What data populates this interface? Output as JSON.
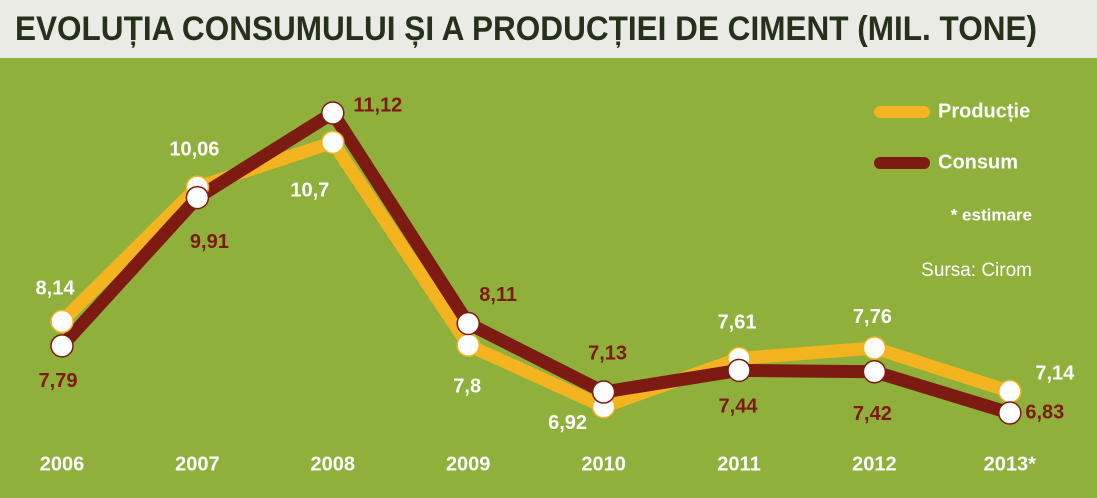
{
  "chart_data": {
    "type": "line",
    "title": "EVOLUȚIA CONSUMULUI ȘI A PRODUCȚIEI DE CIMENT (MIL. TONE)",
    "categories": [
      "2006",
      "2007",
      "2008",
      "2009",
      "2010",
      "2011",
      "2012",
      "2013*"
    ],
    "series": [
      {
        "name": "Producție",
        "color": "#f4b41f",
        "label_color": "#ffffff",
        "values": [
          8.14,
          10.06,
          10.7,
          7.8,
          6.92,
          7.61,
          7.76,
          7.14
        ],
        "value_labels": [
          "8,14",
          "10,06",
          "10,7",
          "7,8",
          "6,92",
          "7,61",
          "7,76",
          "7,14"
        ]
      },
      {
        "name": "Consum",
        "color": "#7d1a12",
        "label_color": "#7d1a12",
        "values": [
          7.79,
          9.91,
          11.12,
          8.11,
          7.13,
          7.44,
          7.42,
          6.83
        ],
        "value_labels": [
          "7,79",
          "9,91",
          "11,12",
          "8,11",
          "7,13",
          "7,44",
          "7,42",
          "6,83"
        ]
      }
    ],
    "note": "* estimare",
    "source": "Sursa: Cirom"
  }
}
